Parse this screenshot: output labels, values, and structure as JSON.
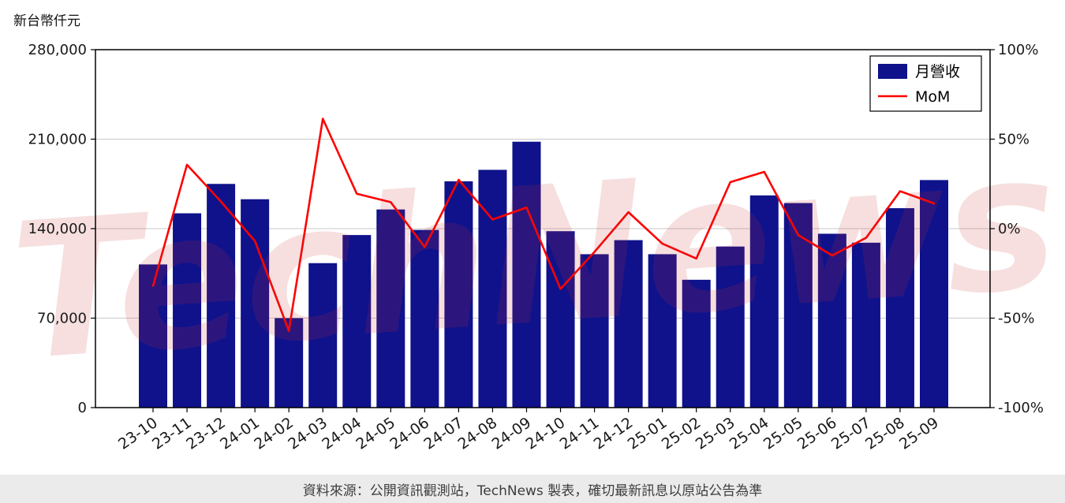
{
  "page": {
    "unit_label": "新台幣仟元",
    "footer_text": "資料來源：公開資訊觀測站，TechNews 製表，確切最新訊息以原站公告為準",
    "watermark": "TechNews"
  },
  "chart_data": {
    "type": "bar",
    "title": "",
    "categories": [
      "23-10",
      "23-11",
      "23-12",
      "24-01",
      "24-02",
      "24-03",
      "24-04",
      "24-05",
      "24-06",
      "24-07",
      "24-08",
      "24-09",
      "24-10",
      "24-11",
      "24-12",
      "25-01",
      "25-02",
      "25-03",
      "25-04",
      "25-05",
      "25-06",
      "25-07",
      "25-08",
      "25-09"
    ],
    "series": [
      {
        "name": "月營收",
        "type": "bar",
        "axis": "left",
        "color": "#0f128b",
        "values": [
          112000,
          152000,
          175000,
          163000,
          70000,
          113000,
          135000,
          155000,
          139000,
          177000,
          186000,
          208000,
          138000,
          120000,
          131000,
          120000,
          100000,
          126000,
          166000,
          160000,
          136000,
          129000,
          156000,
          178000
        ]
      },
      {
        "name": "MoM",
        "type": "line",
        "axis": "right",
        "color": "#ff0000",
        "values": [
          -32,
          35.7,
          15.1,
          -6.9,
          -57.1,
          61.4,
          19.5,
          14.8,
          -10.3,
          27.3,
          5.1,
          11.8,
          -33.7,
          -13.0,
          9.2,
          -8.4,
          -16.7,
          26.0,
          31.7,
          -3.6,
          -15.0,
          -5.1,
          20.9,
          14.1
        ]
      }
    ],
    "left_axis": {
      "label": "新台幣仟元",
      "range": [
        0,
        280000
      ],
      "tick_values": [
        0,
        70000,
        140000,
        210000,
        280000
      ],
      "tick_labels": [
        "0",
        "70,000",
        "140,000",
        "210,000",
        "280,000"
      ]
    },
    "right_axis": {
      "range": [
        -100,
        100
      ],
      "tick_values": [
        -100,
        -50,
        0,
        50,
        100
      ],
      "tick_labels": [
        "-100%",
        "-50%",
        "0%",
        "50%",
        "100%"
      ]
    },
    "legend": {
      "position": "top-right",
      "entries": [
        "月營收",
        "MoM"
      ]
    },
    "grid": true,
    "colors": {
      "grid": "#c9c9c9",
      "spine": "#000000",
      "text": "#1a1a1a",
      "watermark": "#d03030",
      "footer_bg": "#ebebeb"
    }
  }
}
